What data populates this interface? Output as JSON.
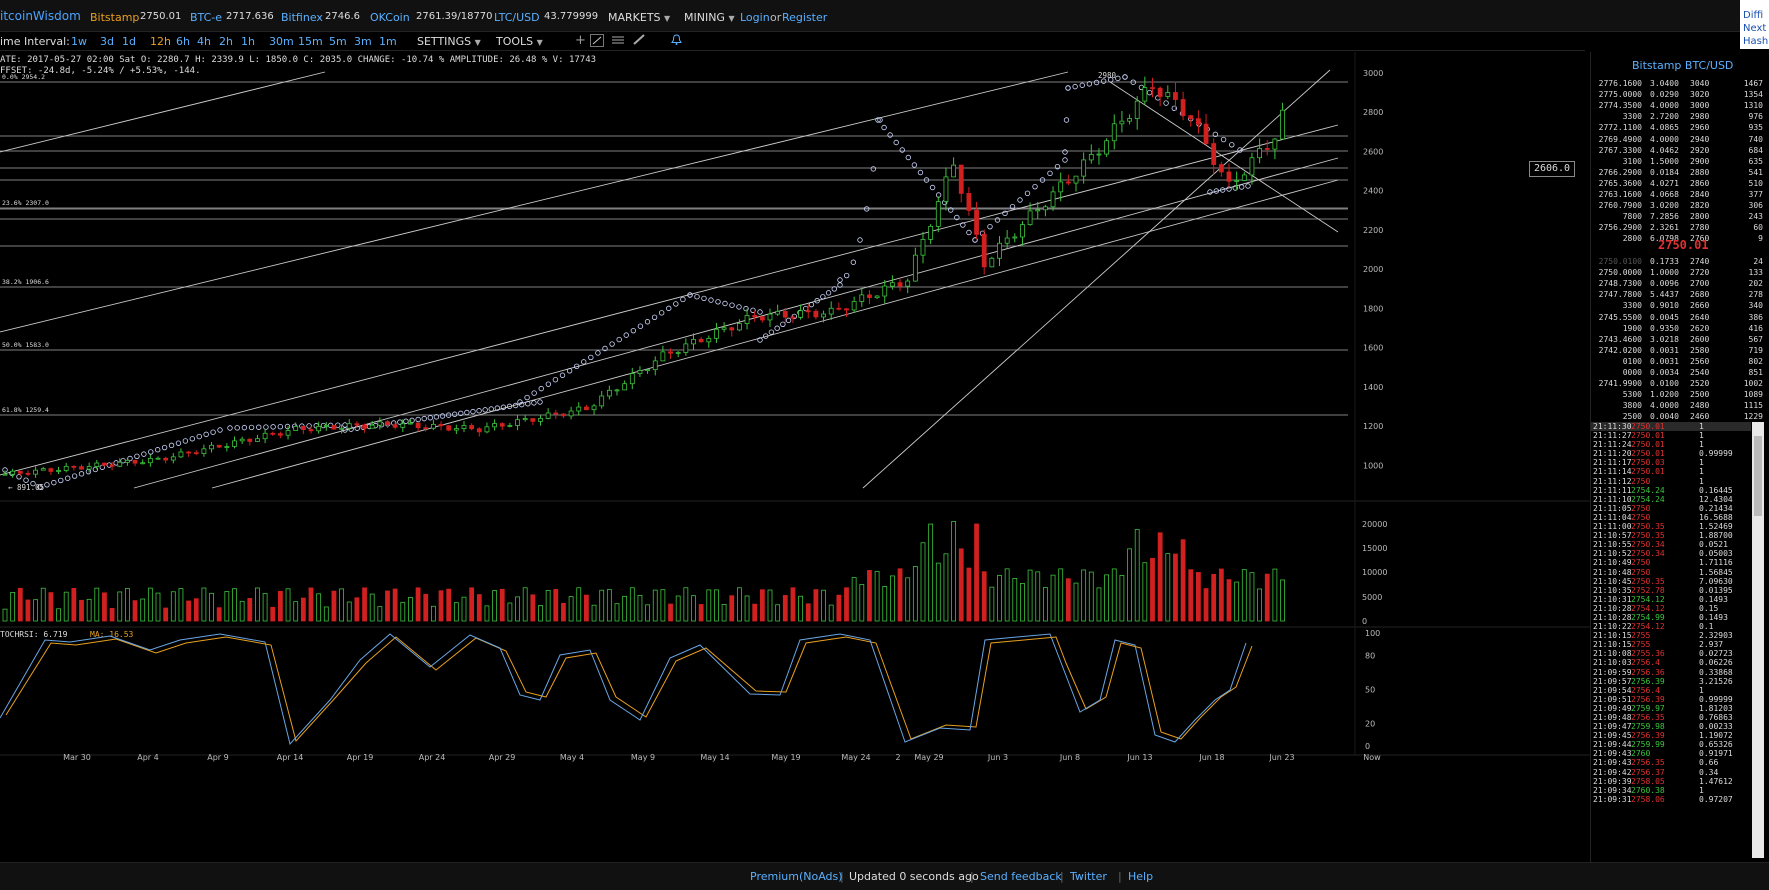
{
  "topbar": {
    "logo": "itcoinWisdom",
    "tickers": [
      {
        "name": "Bitstamp",
        "value": "2750.01",
        "color": "#e8a020"
      },
      {
        "name": "BTC-e",
        "value": "2717.636",
        "color": "#5ab0ff"
      },
      {
        "name": "Bitfinex",
        "value": "2746.6",
        "color": "#5ab0ff"
      },
      {
        "name": "OKCoin",
        "value": "2761.39/18770",
        "color": "#5ab0ff"
      },
      {
        "name": "LTC/USD",
        "value": "43.779999",
        "color": "#5ab0ff"
      }
    ],
    "menus": [
      "MARKETS",
      "MINING"
    ],
    "login": "Login",
    "or": "or",
    "register": "Register",
    "right_links": [
      "Diffi",
      "Next",
      "Hash"
    ]
  },
  "interval_bar": {
    "label": "ime Interval:",
    "intervals": [
      "1w",
      "3d",
      "1d",
      "12h",
      "6h",
      "4h",
      "2h",
      "1h",
      "30m",
      "15m",
      "5m",
      "3m",
      "1m"
    ],
    "selected": "12h",
    "settings": "SETTINGS",
    "tools": "TOOLS",
    "tool_icons": [
      "crosshair-icon",
      "line-draw-icon",
      "horizontal-lines-icon",
      "pen-icon",
      "bell-icon"
    ]
  },
  "info": {
    "line1": "ATE: 2017-05-27 02:00 Sat    O: 2280.7    H: 2339.9    L: 1850.0    C: 2035.0    CHANGE: -10.74 %    AMPLITUDE: 26.48 %    V: 17743",
    "line2": "FFSET: -24.8d, -5.24% / +5.53%, -144."
  },
  "main_chart": {
    "y_labels": [
      "3000",
      "2800",
      "2600",
      "2400",
      "2200",
      "2000",
      "1800",
      "1600",
      "1400",
      "1200",
      "1000"
    ],
    "current_price_box": "2606.0",
    "fib_labels": [
      "0.0% 2954.2",
      "23.6% 2307.0",
      "38.2% 1906.6",
      "50.0% 1583.0",
      "61.8% 1259.4"
    ],
    "high_label": "2980",
    "low_label": "891.05",
    "x_labels": [
      "Mar 30",
      "Apr 4",
      "Apr 9",
      "Apr 14",
      "Apr 19",
      "Apr 24",
      "Apr 29",
      "May 4",
      "May 9",
      "May 14",
      "May 19",
      "May 24",
      "2",
      "May 29",
      "Jun 3",
      "Jun 8",
      "Jun 13",
      "Jun 18",
      "Jun 23",
      "Now"
    ],
    "up_color": "#3cc43c",
    "down_color": "#d02020"
  },
  "volume_chart": {
    "y_labels": [
      "20000",
      "15000",
      "10000",
      "5000",
      "0"
    ]
  },
  "stoch": {
    "label": "TOCHRSI: 6.719",
    "ma_label": "MA: 16.53",
    "y_labels": [
      "100",
      "80",
      "50",
      "20",
      "0"
    ],
    "k_color": "#6aa6e6",
    "d_color": "#e8a020"
  },
  "orderbook": {
    "title": "Bitstamp BTC/USD",
    "last_price": "2750.01",
    "asks": [
      [
        "2776.1600",
        "3.0400",
        "3040",
        "1467"
      ],
      [
        "2775.0000",
        "0.0290",
        "3020",
        "1354"
      ],
      [
        "2774.3500",
        "4.0000",
        "3000",
        "1310"
      ],
      [
        "3300",
        "2.7200",
        "2980",
        "976"
      ],
      [
        "2772.1100",
        "4.0865",
        "2960",
        "935"
      ],
      [
        "2769.4900",
        "4.0000",
        "2940",
        "740"
      ],
      [
        "2767.3300",
        "4.0462",
        "2920",
        "684"
      ],
      [
        "3100",
        "1.5000",
        "2900",
        "635"
      ],
      [
        "2766.2900",
        "0.0184",
        "2880",
        "541"
      ],
      [
        "2765.3600",
        "4.0271",
        "2860",
        "510"
      ],
      [
        "2763.1600",
        "4.0668",
        "2840",
        "377"
      ],
      [
        "2760.7900",
        "3.0200",
        "2820",
        "306"
      ],
      [
        "7800",
        "7.2856",
        "2800",
        "243"
      ],
      [
        "2756.2900",
        "2.3261",
        "2780",
        "60"
      ],
      [
        "2800",
        "6.0798",
        "2760",
        "9"
      ]
    ],
    "bids": [
      [
        "2750.0100",
        "0.1733",
        "2740",
        "24"
      ],
      [
        "2750.0000",
        "1.0000",
        "2720",
        "133"
      ],
      [
        "2748.7300",
        "0.0096",
        "2700",
        "202"
      ],
      [
        "2747.7800",
        "5.4437",
        "2680",
        "278"
      ],
      [
        "3300",
        "0.9010",
        "2660",
        "340"
      ],
      [
        "2745.5500",
        "0.0045",
        "2640",
        "386"
      ],
      [
        "1900",
        "0.9350",
        "2620",
        "416"
      ],
      [
        "2743.4600",
        "3.0218",
        "2600",
        "567"
      ],
      [
        "2742.0200",
        "0.0031",
        "2580",
        "719"
      ],
      [
        "0100",
        "0.0031",
        "2560",
        "802"
      ],
      [
        "0000",
        "0.0034",
        "2540",
        "851"
      ],
      [
        "2741.9900",
        "0.0100",
        "2520",
        "1002"
      ],
      [
        "5300",
        "1.0200",
        "2500",
        "1089"
      ],
      [
        "3800",
        "4.0000",
        "2480",
        "1115"
      ],
      [
        "2500",
        "0.0040",
        "2460",
        "1229"
      ]
    ]
  },
  "trades": [
    [
      "21:11:30",
      "2750.01",
      "1",
      "r"
    ],
    [
      "21:11:27",
      "2750.01",
      "1",
      "r"
    ],
    [
      "21:11:24",
      "2750.01",
      "1",
      "r"
    ],
    [
      "21:11:20",
      "2750.01",
      "0.99999",
      "r"
    ],
    [
      "21:11:17",
      "2750.03",
      "1",
      "r"
    ],
    [
      "21:11:14",
      "2750.01",
      "1",
      "r"
    ],
    [
      "21:11:12",
      "2750",
      "1",
      "r"
    ],
    [
      "21:11:11",
      "2754.24",
      "0.16445",
      "g"
    ],
    [
      "21:11:10",
      "2754.24",
      "12.4304",
      "g"
    ],
    [
      "21:11:05",
      "2750",
      "0.21434",
      "r"
    ],
    [
      "21:11:04",
      "2750",
      "16.5688",
      "r"
    ],
    [
      "21:11:00",
      "2750.35",
      "1.52469",
      "r"
    ],
    [
      "21:10:57",
      "2750.35",
      "1.88700",
      "r"
    ],
    [
      "21:10:55",
      "2750.34",
      "0.0521",
      "r"
    ],
    [
      "21:10:52",
      "2750.34",
      "0.05003",
      "r"
    ],
    [
      "21:10:49",
      "2750",
      "1.71116",
      "r"
    ],
    [
      "21:10:48",
      "2750",
      "1.56845",
      "r"
    ],
    [
      "21:10:45",
      "2750.35",
      "7.09630",
      "r"
    ],
    [
      "21:10:35",
      "2752.78",
      "0.01395",
      "r"
    ],
    [
      "21:10:31",
      "2754.12",
      "0.1493",
      "g"
    ],
    [
      "21:10:28",
      "2754.12",
      "0.15",
      "r"
    ],
    [
      "21:10:28",
      "2754.99",
      "0.1493",
      "g"
    ],
    [
      "21:10:22",
      "2754.12",
      "0.1",
      "r"
    ],
    [
      "21:10:15",
      "2755",
      "2.32903",
      "r"
    ],
    [
      "21:10:15",
      "2755",
      "2.937",
      "r"
    ],
    [
      "21:10:08",
      "2755.36",
      "0.02723",
      "r"
    ],
    [
      "21:10:03",
      "2756.4",
      "0.06226",
      "r"
    ],
    [
      "21:09:59",
      "2756.36",
      "0.33868",
      "r"
    ],
    [
      "21:09:57",
      "2756.39",
      "3.21526",
      "g"
    ],
    [
      "21:09:54",
      "2756.4",
      "1",
      "r"
    ],
    [
      "21:09:51",
      "2756.39",
      "0.99999",
      "r"
    ],
    [
      "21:09:49",
      "2759.97",
      "1.81203",
      "g"
    ],
    [
      "21:09:48",
      "2756.35",
      "0.76863",
      "r"
    ],
    [
      "21:09:47",
      "2759.98",
      "0.00233",
      "g"
    ],
    [
      "21:09:45",
      "2756.39",
      "1.19072",
      "r"
    ],
    [
      "21:09:44",
      "2759.99",
      "0.65326",
      "g"
    ],
    [
      "21:09:43",
      "2760",
      "0.91971",
      "g"
    ],
    [
      "21:09:43",
      "2756.35",
      "0.66",
      "r"
    ],
    [
      "21:09:42",
      "2756.37",
      "0.34",
      "r"
    ],
    [
      "21:09:39",
      "2758.05",
      "1.47612",
      "r"
    ],
    [
      "21:09:34",
      "2760.38",
      "1",
      "g"
    ],
    [
      "21:09:31",
      "2758.06",
      "0.97207",
      "r"
    ]
  ],
  "footer": {
    "links": [
      "Premium(NoAds)",
      "Updated 0 seconds ago",
      "Send feedback",
      "Twitter",
      "Help"
    ]
  }
}
